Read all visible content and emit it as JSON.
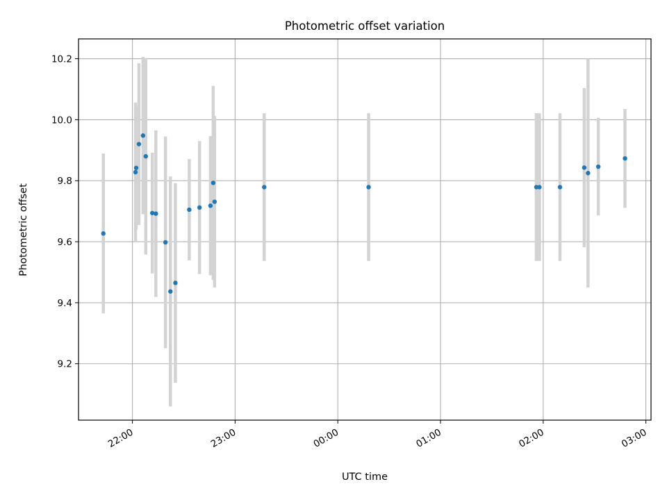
{
  "chart_data": {
    "type": "scatter",
    "title": "Photometric offset variation",
    "xlabel": "UTC time",
    "ylabel": "Photometric offset",
    "x_ticks": [
      {
        "label": "22:00",
        "value": 0
      },
      {
        "label": "23:00",
        "value": 60
      },
      {
        "label": "00:00",
        "value": 120
      },
      {
        "label": "01:00",
        "value": 180
      },
      {
        "label": "02:00",
        "value": 240
      },
      {
        "label": "03:00",
        "value": 300
      }
    ],
    "xlim": [
      -31.5,
      303
    ],
    "y_ticks": [
      9.2,
      9.4,
      9.6,
      9.8,
      10.0,
      10.2
    ],
    "ylim": [
      9.015,
      10.265
    ],
    "grid": true,
    "point_color": "#1f77b4",
    "errorbar_color": "#d3d3d3",
    "points": [
      {
        "t": -17,
        "y": 9.627,
        "lo": 9.365,
        "hi": 9.889
      },
      {
        "t": 1.8,
        "y": 9.828,
        "lo": 9.6,
        "hi": 10.056
      },
      {
        "t": 2.2,
        "y": 9.842,
        "lo": 9.64,
        "hi": 10.044
      },
      {
        "t": 3.8,
        "y": 9.92,
        "lo": 9.655,
        "hi": 10.185
      },
      {
        "t": 6.2,
        "y": 9.948,
        "lo": 9.69,
        "hi": 10.206
      },
      {
        "t": 7.8,
        "y": 9.88,
        "lo": 9.558,
        "hi": 10.202
      },
      {
        "t": 11.6,
        "y": 9.694,
        "lo": 9.496,
        "hi": 9.892
      },
      {
        "t": 13.7,
        "y": 9.692,
        "lo": 9.419,
        "hi": 9.965
      },
      {
        "t": 19.3,
        "y": 9.598,
        "lo": 9.251,
        "hi": 9.945
      },
      {
        "t": 22.2,
        "y": 9.437,
        "lo": 9.06,
        "hi": 9.814
      },
      {
        "t": 25.1,
        "y": 9.465,
        "lo": 9.138,
        "hi": 9.792
      },
      {
        "t": 33.2,
        "y": 9.705,
        "lo": 9.539,
        "hi": 9.871
      },
      {
        "t": 39.2,
        "y": 9.712,
        "lo": 9.494,
        "hi": 9.93
      },
      {
        "t": 45.6,
        "y": 9.718,
        "lo": 9.49,
        "hi": 9.946
      },
      {
        "t": 47.2,
        "y": 9.793,
        "lo": 9.475,
        "hi": 10.111
      },
      {
        "t": 48.0,
        "y": 9.731,
        "lo": 9.45,
        "hi": 10.012
      },
      {
        "t": 77.0,
        "y": 9.779,
        "lo": 9.537,
        "hi": 10.021
      },
      {
        "t": 138.0,
        "y": 9.779,
        "lo": 9.537,
        "hi": 10.021
      },
      {
        "t": 236.0,
        "y": 9.779,
        "lo": 9.537,
        "hi": 10.021
      },
      {
        "t": 237.8,
        "y": 9.779,
        "lo": 9.537,
        "hi": 10.021
      },
      {
        "t": 249.8,
        "y": 9.779,
        "lo": 9.537,
        "hi": 10.021
      },
      {
        "t": 264.0,
        "y": 9.843,
        "lo": 9.582,
        "hi": 10.104
      },
      {
        "t": 266.2,
        "y": 9.825,
        "lo": 9.45,
        "hi": 10.2
      },
      {
        "t": 272.2,
        "y": 9.846,
        "lo": 9.686,
        "hi": 10.006
      },
      {
        "t": 287.8,
        "y": 9.873,
        "lo": 9.711,
        "hi": 10.035
      }
    ]
  }
}
